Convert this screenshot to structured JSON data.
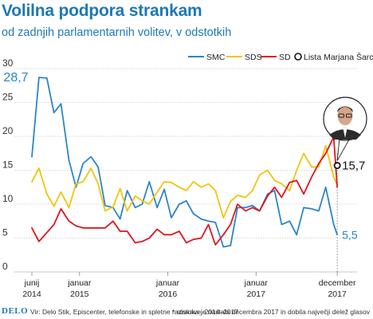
{
  "header": {
    "title": "Volilna podpora strankam",
    "subtitle": "od zadnjih parlamentarnih volitev, v odstotkih"
  },
  "footer": {
    "logo": "DELO",
    "source": "Vir: Delo Stik, Episcenter, telefonske in spletne raziskave, 2014–2017",
    "note": "* stranka je nastala decembra 2017 in dobila največji delež glasov"
  },
  "colors": {
    "SMC": "#2a86c8",
    "SDS": "#f2c40d",
    "SD": "#e1141e",
    "LMS": "#111111",
    "grid": "#c8c8c8"
  },
  "chart_data": {
    "type": "line",
    "title": "Volilna podpora strankam",
    "subtitle": "od zadnjih parlamentarnih volitev, v odstotkih",
    "xlabel": "",
    "ylabel": "",
    "xlim": [
      2014.46,
      2018.0
    ],
    "ylim": [
      0,
      30
    ],
    "y_ticks": [
      0,
      5,
      10,
      15,
      20,
      25,
      30
    ],
    "grid": true,
    "legend_position": "top-right",
    "x_ticks": [
      {
        "x": 2014.46,
        "line1": "junij",
        "line2": "2014"
      },
      {
        "x": 2015.0,
        "line1": "januar",
        "line2": "2015"
      },
      {
        "x": 2016.0,
        "line1": "januar",
        "line2": "2016"
      },
      {
        "x": 2017.0,
        "line1": "januar",
        "line2": "2017"
      },
      {
        "x": 2017.92,
        "line1": "december",
        "line2": "2017"
      }
    ],
    "series": [
      {
        "name": "SMC",
        "color": "#2a86c8",
        "x": [
          2014.46,
          2014.54,
          2014.63,
          2014.71,
          2014.79,
          2014.88,
          2014.96,
          2015.04,
          2015.13,
          2015.21,
          2015.29,
          2015.38,
          2015.46,
          2015.54,
          2015.63,
          2015.71,
          2015.79,
          2015.88,
          2015.96,
          2016.04,
          2016.13,
          2016.21,
          2016.29,
          2016.38,
          2016.46,
          2016.54,
          2016.63,
          2016.71,
          2016.79,
          2016.88,
          2016.96,
          2017.04,
          2017.13,
          2017.21,
          2017.29,
          2017.38,
          2017.46,
          2017.54,
          2017.63,
          2017.71,
          2017.79,
          2017.88,
          2017.92
        ],
        "y": [
          17.0,
          28.7,
          28.6,
          23.5,
          24.8,
          16.5,
          12.5,
          16.0,
          17.0,
          15.5,
          9.8,
          9.5,
          7.8,
          12.0,
          9.5,
          10.0,
          13.3,
          9.5,
          12.2,
          8.0,
          10.0,
          10.5,
          8.6,
          7.8,
          7.5,
          7.3,
          3.7,
          3.9,
          9.5,
          9.5,
          9.8,
          9.0,
          11.5,
          12.0,
          7.0,
          7.5,
          5.5,
          9.5,
          9.3,
          9.0,
          12.5,
          7.0,
          5.5
        ]
      },
      {
        "name": "SDS",
        "color": "#f2c40d",
        "x": [
          2014.46,
          2014.54,
          2014.63,
          2014.71,
          2014.79,
          2014.88,
          2014.96,
          2015.04,
          2015.13,
          2015.21,
          2015.29,
          2015.38,
          2015.46,
          2015.54,
          2015.63,
          2015.71,
          2015.79,
          2015.88,
          2015.96,
          2016.04,
          2016.13,
          2016.21,
          2016.29,
          2016.38,
          2016.46,
          2016.54,
          2016.63,
          2016.71,
          2016.79,
          2016.88,
          2016.96,
          2017.04,
          2017.13,
          2017.21,
          2017.29,
          2017.38,
          2017.46,
          2017.54,
          2017.63,
          2017.71,
          2017.79,
          2017.88,
          2017.92
        ],
        "y": [
          13.3,
          15.3,
          11.5,
          9.7,
          11.8,
          9.5,
          13.0,
          13.3,
          15.3,
          13.0,
          9.0,
          9.6,
          12.3,
          9.0,
          11.2,
          10.5,
          10.0,
          11.8,
          13.3,
          13.2,
          12.5,
          12.0,
          13.3,
          12.5,
          13.0,
          12.0,
          8.0,
          10.4,
          11.3,
          11.0,
          12.0,
          14.3,
          15.0,
          13.5,
          13.0,
          12.0,
          15.0,
          17.5,
          15.5,
          15.5,
          18.6,
          14.0,
          12.8
        ]
      },
      {
        "name": "SD",
        "color": "#e1141e",
        "x": [
          2014.46,
          2014.54,
          2014.63,
          2014.71,
          2014.79,
          2014.88,
          2014.96,
          2015.04,
          2015.13,
          2015.21,
          2015.29,
          2015.38,
          2015.46,
          2015.54,
          2015.63,
          2015.71,
          2015.79,
          2015.88,
          2015.96,
          2016.04,
          2016.13,
          2016.21,
          2016.29,
          2016.38,
          2016.46,
          2016.54,
          2016.63,
          2016.71,
          2016.79,
          2016.88,
          2016.96,
          2017.04,
          2017.13,
          2017.21,
          2017.29,
          2017.38,
          2017.46,
          2017.54,
          2017.63,
          2017.71,
          2017.79,
          2017.88,
          2017.92
        ],
        "y": [
          6.5,
          4.5,
          5.8,
          7.0,
          9.3,
          7.5,
          6.8,
          6.5,
          6.5,
          6.5,
          6.5,
          7.5,
          6.0,
          6.0,
          4.3,
          4.5,
          5.0,
          6.3,
          5.5,
          5.5,
          6.0,
          4.3,
          4.8,
          5.0,
          7.0,
          4.0,
          5.5,
          7.0,
          10.0,
          9.0,
          9.5,
          9.0,
          11.2,
          12.5,
          11.0,
          13.2,
          13.5,
          11.5,
          14.0,
          16.0,
          17.5,
          19.9,
          12.5
        ]
      },
      {
        "name": "Lista Marjana Šarca*",
        "color": "#111111",
        "marker": "open-circle",
        "x": [
          2017.92
        ],
        "y": [
          15.7
        ]
      }
    ],
    "annotations": [
      {
        "text": "28,7",
        "series": "SMC",
        "x": 2014.46,
        "y": 28.7,
        "color": "#2a86c8"
      },
      {
        "text": "5,5",
        "series": "SMC",
        "x": 2017.92,
        "y": 5.5,
        "color": "#2a86c8"
      },
      {
        "text": "15,7",
        "series": "Lista Marjana Šarca*",
        "x": 2017.92,
        "y": 15.7,
        "color": "#111111"
      }
    ]
  }
}
